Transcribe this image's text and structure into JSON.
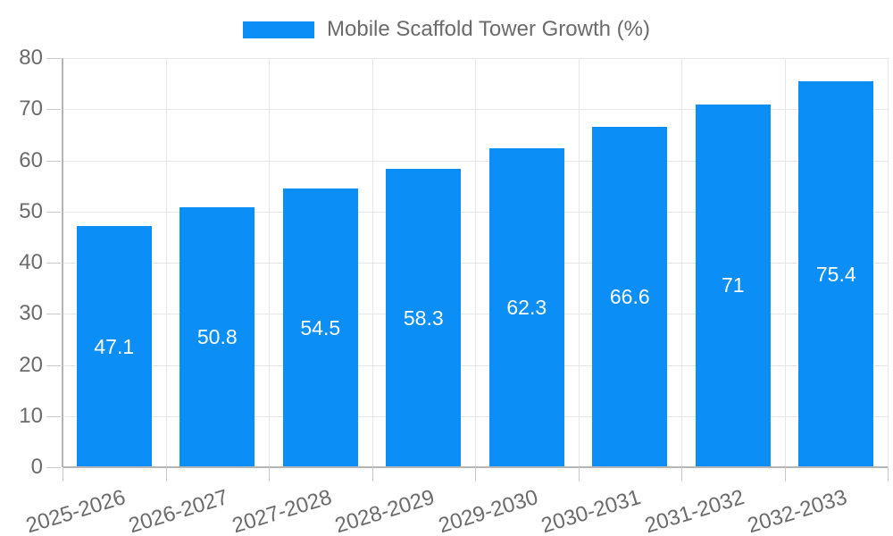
{
  "legend": {
    "label": "Mobile Scaffold Tower Growth (%)"
  },
  "chart_data": {
    "type": "bar",
    "title": "Mobile Scaffold Tower Growth (%)",
    "categories": [
      "2025-2026",
      "2026-2027",
      "2027-2028",
      "2028-2029",
      "2029-2030",
      "2030-2031",
      "2031-2032",
      "2032-2033"
    ],
    "values": [
      47.1,
      50.8,
      54.5,
      58.3,
      62.3,
      66.6,
      71,
      75.4
    ],
    "bar_labels": [
      "47.1",
      "50.8",
      "54.5",
      "58.3",
      "62.3",
      "66.6",
      "71",
      "75.4"
    ],
    "series": [
      {
        "name": "Mobile Scaffold Tower Growth (%)",
        "values": [
          47.1,
          50.8,
          54.5,
          58.3,
          62.3,
          66.6,
          71,
          75.4
        ]
      }
    ],
    "xlabel": "",
    "ylabel": "",
    "ylim": [
      0,
      80
    ],
    "ytick_step": 10,
    "ytick_labels": [
      "80",
      "70",
      "60",
      "50",
      "40",
      "30",
      "20",
      "10",
      "0"
    ],
    "grid": true,
    "legend_position": "top",
    "value_label_position": "center-inside",
    "colors": {
      "bar": "#0b8ff7",
      "bar_value_text": "#ffffff",
      "axis_text": "#6b6b6b",
      "gridline": "#e7e7e7",
      "axis_line": "#b5b5b5",
      "tick": "#c9c9c9",
      "background": "#ffffff"
    }
  }
}
